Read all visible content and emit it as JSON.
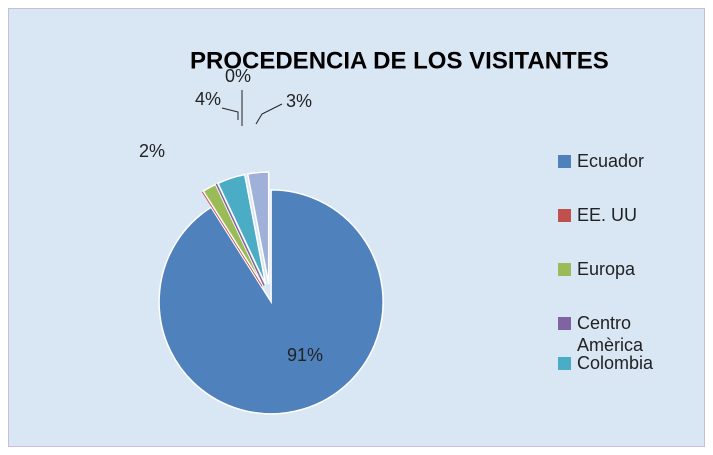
{
  "chart_data": {
    "type": "pie",
    "title": "PROCEDENCIA DE LOS VISITANTES",
    "categories": [
      "Ecuador",
      "EE. UU",
      "Europa",
      "Centro Amèrica",
      "Colombia",
      null
    ],
    "values": [
      91,
      0,
      2,
      0,
      4,
      3
    ],
    "value_labels": [
      "91%",
      null,
      "2%",
      "0%",
      "4%",
      "3%"
    ],
    "colors": [
      "#4f81bd",
      "#c0504d",
      "#9bbb59",
      "#8064a2",
      "#4bacc6",
      "#9fb0d9"
    ],
    "legend": "right"
  }
}
